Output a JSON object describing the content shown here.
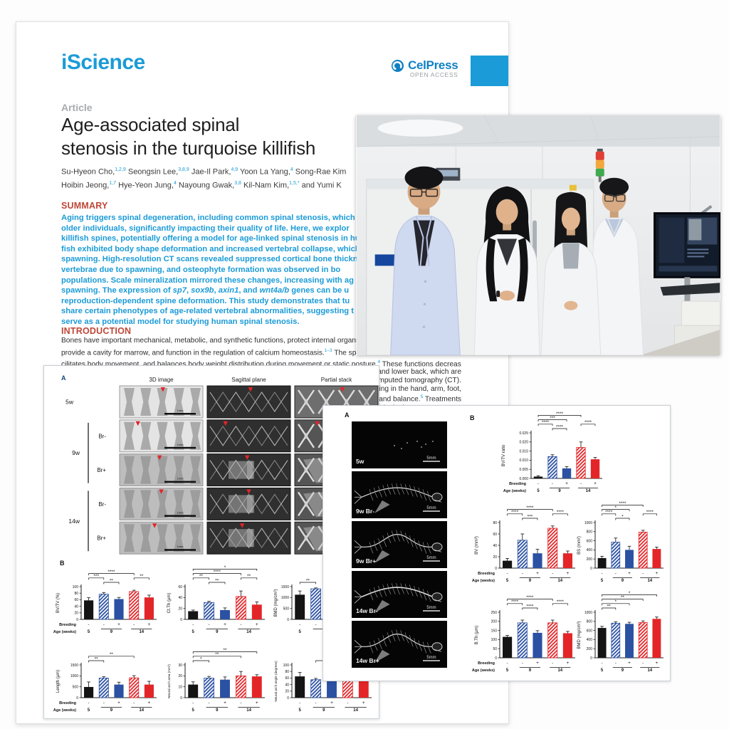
{
  "page": {
    "journal": "iScience",
    "publisher": {
      "name": "CelPress",
      "subtitle": "OPEN ACCESS"
    },
    "article_label": "Article",
    "title_lines": [
      "Age-associated spinal",
      "stenosis in the turquoise killifish"
    ],
    "author_lines": [
      [
        {
          "t": "Su-Hyeon Cho,",
          "sup": "1,2,9"
        },
        {
          "t": " Seongsin Lee,",
          "sup": "3,8,9"
        },
        {
          "t": " Jae-Il Park,",
          "sup": "4,9"
        },
        {
          "t": " Yoon La Yang,",
          "sup": "4"
        },
        {
          "t": " Song-Rae Kim"
        }
      ],
      [
        {
          "t": "Hoibin Jeong,",
          "sup": "1,7"
        },
        {
          "t": " Hye-Yeon Jung,",
          "sup": "4"
        },
        {
          "t": " Nayoung Gwak,",
          "sup": "3,8"
        },
        {
          "t": " Kil-Nam Kim,",
          "sup": "1,5,*"
        },
        {
          "t": " and Yumi K"
        }
      ]
    ],
    "summary": {
      "heading": "SUMMARY",
      "lines": [
        [
          {
            "t": "Aging triggers spinal degeneration, including common spinal stenosis, which"
          }
        ],
        [
          {
            "t": "older individuals, significantly impacting their quality of life. Here, we explor"
          }
        ],
        [
          {
            "t": "killifish spines, potentially offering a model for age-linked spinal stenosis in hu"
          }
        ],
        [
          {
            "t": "fish exhibited body shape deformation and increased vertebral collapse, which"
          }
        ],
        [
          {
            "t": "spawning. High-resolution CT scans revealed suppressed cortical bone thickn"
          }
        ],
        [
          {
            "t": "vertebrae due to spawning, and osteophyte formation was observed in bo"
          }
        ],
        [
          {
            "t": "populations. Scale mineralization mirrored these changes, increasing with ag"
          }
        ],
        [
          {
            "t": "spawning. The expression of "
          },
          {
            "t": "sp7",
            "i": true
          },
          {
            "t": ", "
          },
          {
            "t": "sox9b",
            "i": true
          },
          {
            "t": ", "
          },
          {
            "t": "axin1",
            "i": true
          },
          {
            "t": ", and "
          },
          {
            "t": "wnt4a/b",
            "i": true
          },
          {
            "t": " genes can be u"
          }
        ],
        [
          {
            "t": "reproduction-dependent spine deformation. This study demonstrates that tu"
          }
        ],
        [
          {
            "t": "share certain phenotypes of age-related vertebral abnormalities, suggesting t"
          }
        ],
        [
          {
            "t": "serve as a potential model for studying human spinal stenosis."
          }
        ]
      ]
    },
    "introduction": {
      "heading": "INTRODUCTION",
      "lines": [
        [
          {
            "t": "Bones have important mechanical, metabolic, and synthetic functions, protect internal organs, streng"
          }
        ],
        [
          {
            "t": "provide a cavity for marrow, and function in the regulation of calcium homeostasis.",
            "sup": "1–3"
          },
          {
            "t": " The spine is lo"
          }
        ],
        [
          {
            "t": "cilitates body movement, and balances body weight distribution during movement or static posture.",
            "sup": "4"
          },
          {
            "t": " These functions decrease consider-"
          }
        ]
      ],
      "fragments": [
        [
          {
            "t": "and lower back, which are"
          }
        ],
        [
          {
            "t": "omputed tomography (CT)."
          }
        ],
        [
          {
            "t": "ling in the hand, arm, foot,"
          }
        ],
        [
          {
            "t": "g and balance.",
            "sup": "5"
          },
          {
            "t": " Treatments"
          }
        ],
        [
          {
            "t": "ological treatments. How-"
          }
        ]
      ]
    }
  },
  "x_axis": {
    "breeding_label": "Breeding",
    "age_label": "Age (weeks)",
    "breeding": [
      "-",
      "-",
      "+",
      "-",
      "+"
    ],
    "ages": [
      "5",
      "9",
      "14"
    ],
    "conditions": [
      "5w",
      "9w Br-",
      "9w Br+",
      "14w Br-",
      "14w Br+"
    ]
  },
  "figure1": {
    "panel_a": {
      "label": "A",
      "columns": [
        "3D image",
        "Sagittal plane",
        "Partial stack"
      ],
      "row_groups": [
        {
          "age": "5w",
          "rows": [
            ""
          ]
        },
        {
          "age": "9w",
          "rows": [
            "Br-",
            "Br+"
          ]
        },
        {
          "age": "14w",
          "rows": [
            "Br-",
            "Br+"
          ]
        }
      ],
      "scale_label": "1mm"
    },
    "panel_b": {
      "label": "B",
      "chart_ids": [
        0,
        1,
        2,
        3,
        4,
        5
      ]
    }
  },
  "figure2": {
    "panel_a": {
      "label": "A",
      "images": [
        {
          "label": "5w"
        },
        {
          "label": "9w Br-"
        },
        {
          "label": "9w Br+"
        },
        {
          "label": "14w Br-"
        },
        {
          "label": "14w Br+"
        }
      ],
      "scale_label": "5mm"
    },
    "panel_b": {
      "label": "B",
      "chart_ids": [
        6,
        7,
        8,
        9,
        10
      ]
    }
  },
  "chart_data": [
    {
      "type": "bar",
      "ylabel": "BV/TV (%)",
      "ylim": [
        0,
        100
      ],
      "yticks": [
        0,
        20,
        40,
        60,
        80,
        100
      ],
      "values": [
        58,
        77,
        62,
        85,
        67
      ],
      "errors": [
        8,
        5,
        5,
        4,
        7
      ],
      "sigs": [
        [
          0,
          1,
          "***",
          1
        ],
        [
          1,
          2,
          "**",
          0
        ],
        [
          0,
          3,
          "****",
          2
        ],
        [
          3,
          4,
          "**",
          1
        ]
      ],
      "xlabels": true
    },
    {
      "type": "bar",
      "ylabel": "Ct.Th (μm)",
      "ylim": [
        0,
        60
      ],
      "yticks": [
        0,
        20,
        40,
        60
      ],
      "values": [
        15,
        31,
        17,
        42,
        27
      ],
      "errors": [
        2,
        2,
        4,
        10,
        5
      ],
      "sigs": [
        [
          0,
          1,
          "**",
          1
        ],
        [
          1,
          2,
          "**",
          0
        ],
        [
          0,
          3,
          "****",
          2
        ],
        [
          0,
          4,
          "*",
          3
        ],
        [
          3,
          4,
          "**",
          1
        ]
      ],
      "xlabels": false
    },
    {
      "type": "bar",
      "ylabel": "BMD (mg/cm³)",
      "ylim": [
        0,
        1500
      ],
      "yticks": [
        0,
        500,
        1000,
        1500
      ],
      "values": [
        1130,
        1400,
        1300,
        1250,
        1290
      ],
      "errors": [
        170,
        40,
        30,
        60,
        40
      ],
      "sigs": [
        [
          0,
          1,
          "**",
          0
        ]
      ],
      "xlabels": false
    },
    {
      "type": "bar",
      "ylabel": "Length (μm)",
      "ylim": [
        0,
        1500
      ],
      "yticks": [
        0,
        500,
        1000,
        1500
      ],
      "values": [
        490,
        900,
        600,
        910,
        600
      ],
      "errors": [
        230,
        60,
        110,
        100,
        150
      ],
      "sigs": [
        [
          0,
          1,
          "**",
          0
        ],
        [
          0,
          3,
          "**",
          1
        ]
      ],
      "xlabels": true
    },
    {
      "type": "bar",
      "ylabel": "Neural arch area (mm²)",
      "ylim": [
        0,
        30
      ],
      "yticks": [
        0,
        10,
        20,
        30
      ],
      "values": [
        12,
        18,
        16.5,
        20,
        19.5
      ],
      "errors": [
        2.5,
        1.5,
        2.5,
        4,
        1.5
      ],
      "sigs": [
        [
          0,
          1,
          "*",
          0
        ],
        [
          0,
          3,
          "**",
          1
        ],
        [
          0,
          4,
          "**",
          2
        ]
      ],
      "xlabels": false
    },
    {
      "type": "bar",
      "ylabel": "Neural arch angle (degrees)",
      "ylim": [
        0,
        100
      ],
      "yticks": [
        0,
        20,
        40,
        60,
        80,
        100
      ],
      "values": [
        65,
        55,
        78,
        58,
        78
      ],
      "errors": [
        12,
        4,
        10,
        4,
        10
      ],
      "sigs": [
        [
          1,
          2,
          "*",
          0
        ],
        [
          3,
          4,
          "*",
          0
        ]
      ],
      "xlabels": false
    },
    {
      "type": "bar",
      "ylabel": "BV/TV ratio",
      "ylim": [
        0,
        0.025
      ],
      "yticks": [
        0,
        0.005,
        0.01,
        0.015,
        0.02,
        0.025
      ],
      "values": [
        0.001,
        0.012,
        0.0055,
        0.017,
        0.0105
      ],
      "errors": [
        0.0005,
        0.001,
        0.001,
        0.003,
        0.001
      ],
      "sigs": [
        [
          0,
          1,
          "****",
          1
        ],
        [
          1,
          2,
          "****",
          0
        ],
        [
          0,
          2,
          "***",
          2
        ],
        [
          0,
          3,
          "****",
          3
        ],
        [
          3,
          4,
          "****",
          1
        ]
      ],
      "xlabels": true,
      "dec": 3
    },
    {
      "type": "bar",
      "ylabel": "BV (mm³)",
      "ylim": [
        0,
        80
      ],
      "yticks": [
        0,
        20,
        40,
        60,
        80
      ],
      "values": [
        13,
        49,
        26,
        70,
        26
      ],
      "errors": [
        4,
        11,
        7,
        4,
        4
      ],
      "sigs": [
        [
          0,
          1,
          "****",
          1
        ],
        [
          1,
          2,
          "***",
          0
        ],
        [
          0,
          3,
          "****",
          2
        ],
        [
          3,
          4,
          "****",
          1
        ]
      ],
      "xlabels": true
    },
    {
      "type": "bar",
      "ylabel": "BS (mm²)",
      "ylim": [
        0,
        1000
      ],
      "yticks": [
        0,
        200,
        400,
        600,
        800,
        1000
      ],
      "values": [
        220,
        570,
        400,
        790,
        420
      ],
      "errors": [
        40,
        90,
        80,
        40,
        40
      ],
      "sigs": [
        [
          0,
          1,
          "****",
          1
        ],
        [
          1,
          2,
          "*",
          0
        ],
        [
          0,
          2,
          "*",
          2
        ],
        [
          0,
          3,
          "****",
          3
        ],
        [
          3,
          4,
          "****",
          1
        ]
      ],
      "xlabels": false
    },
    {
      "type": "bar",
      "ylabel": "B.Th (μm)",
      "ylim": [
        0,
        250
      ],
      "yticks": [
        0,
        50,
        100,
        150,
        200,
        250
      ],
      "values": [
        115,
        192,
        137,
        192,
        135
      ],
      "errors": [
        8,
        15,
        12,
        15,
        10
      ],
      "sigs": [
        [
          0,
          1,
          "****",
          1
        ],
        [
          1,
          2,
          "****",
          0
        ],
        [
          0,
          3,
          "****",
          2
        ],
        [
          3,
          4,
          "****",
          1
        ]
      ],
      "xlabels": true
    },
    {
      "type": "bar",
      "ylabel": "BMD (mg/cm³)",
      "ylim": [
        0,
        1000
      ],
      "yticks": [
        0,
        200,
        400,
        600,
        800,
        1000
      ],
      "values": [
        655,
        760,
        745,
        775,
        855
      ],
      "errors": [
        35,
        30,
        35,
        35,
        40
      ],
      "sigs": [
        [
          0,
          1,
          "**",
          0
        ],
        [
          0,
          2,
          "*",
          1
        ],
        [
          0,
          3,
          "**",
          2
        ],
        [
          0,
          4,
          "*",
          3
        ]
      ],
      "xlabels": false
    }
  ],
  "colors": {
    "brand_blue": "#1b9bd7",
    "publisher_blue": "#1080c4",
    "heading_red": "#bf4637",
    "bar_black": "#141414",
    "bar_blue": "#2b51a3",
    "bar_red": "#e42528",
    "marker_red": "#e3242b"
  }
}
